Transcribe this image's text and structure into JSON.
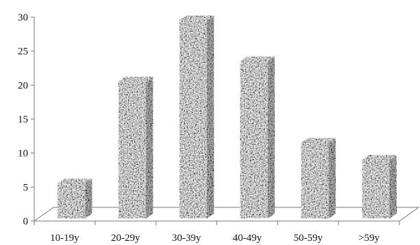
{
  "chart_data": {
    "type": "bar",
    "style": "3d-columns-granite-texture",
    "categories": [
      "10-19y",
      "20-29y",
      "30-39y",
      "40-49y",
      "50-59y",
      ">59y"
    ],
    "values": [
      5.5,
      20.5,
      29.5,
      23.5,
      11.5,
      9
    ],
    "ylim": [
      0,
      30
    ],
    "yticks": [
      0,
      5,
      10,
      15,
      20,
      25,
      30
    ],
    "title": "",
    "xlabel": "",
    "ylabel": "",
    "grid": false,
    "legend": "none",
    "colors": {
      "bar_dark": "#555555",
      "bar_light": "#d0d0d0",
      "axis": "#777777"
    }
  }
}
